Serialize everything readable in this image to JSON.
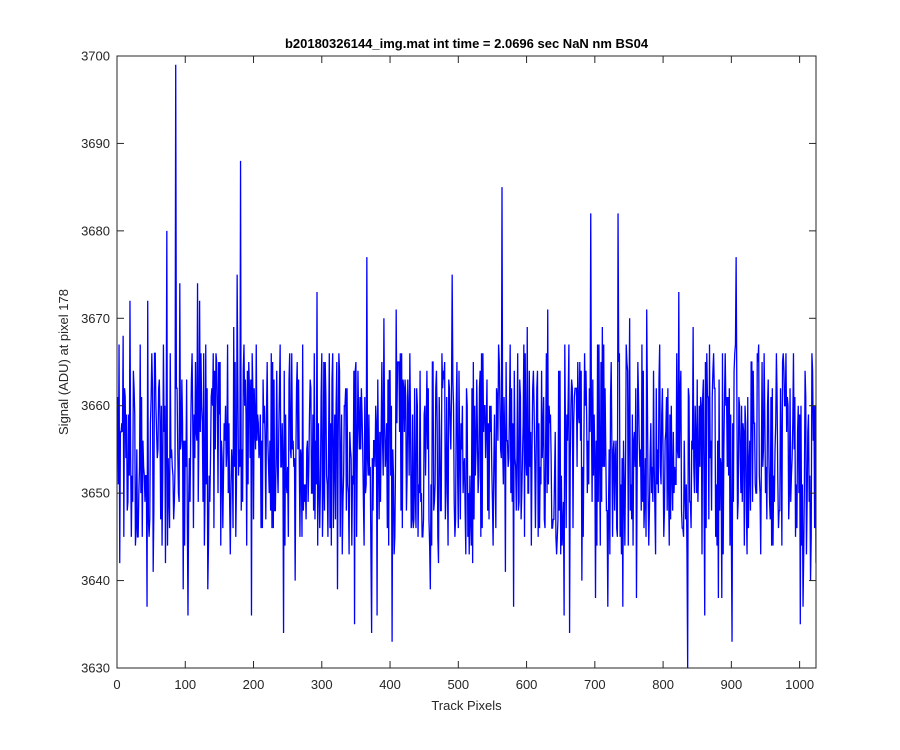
{
  "chart_data": {
    "type": "line",
    "title": "b20180326144_img.mat int time = 2.0696 sec  NaN nm BS04",
    "xlabel": "Track Pixels",
    "ylabel": "Signal (ADU) at pixel 178",
    "xlim": [
      0,
      1024
    ],
    "ylim": [
      3630,
      3700
    ],
    "xticks": [
      0,
      100,
      200,
      300,
      400,
      500,
      600,
      700,
      800,
      900,
      1000
    ],
    "yticks": [
      3630,
      3640,
      3650,
      3660,
      3670,
      3680,
      3690,
      3700
    ],
    "xtick_labels": [
      "0",
      "100",
      "200",
      "300",
      "400",
      "500",
      "600",
      "700",
      "800",
      "900",
      "1000"
    ],
    "ytick_labels": [
      "3630",
      "3640",
      "3650",
      "3660",
      "3670",
      "3680",
      "3690",
      "3700"
    ],
    "grid": false,
    "series": [
      {
        "color": "#0000ff",
        "peaks": [
          [
            0,
            3661
          ],
          [
            3,
            3642
          ],
          [
            8,
            3668
          ],
          [
            14,
            3648
          ],
          [
            18,
            3672
          ],
          [
            43,
            3637
          ],
          [
            44,
            3672
          ],
          [
            52,
            3641
          ],
          [
            61,
            3663
          ],
          [
            70,
            3642
          ],
          [
            72,
            3680
          ],
          [
            82,
            3647
          ],
          [
            85,
            3699
          ],
          [
            89,
            3650
          ],
          [
            91,
            3674
          ],
          [
            96,
            3639
          ],
          [
            103,
            3636
          ],
          [
            112,
            3659
          ],
          [
            117,
            3674
          ],
          [
            120,
            3672
          ],
          [
            129,
            3667
          ],
          [
            132,
            3639
          ],
          [
            165,
            3643
          ],
          [
            170,
            3669
          ],
          [
            175,
            3675
          ],
          [
            180,
            3688
          ],
          [
            186,
            3660
          ],
          [
            196,
            3636
          ],
          [
            243,
            3634
          ],
          [
            255,
            3666
          ],
          [
            260,
            3640
          ],
          [
            292,
            3673
          ],
          [
            298,
            3661
          ],
          [
            300,
            3645
          ],
          [
            322,
            3639
          ],
          [
            347,
            3635
          ],
          [
            365,
            3677
          ],
          [
            372,
            3634
          ],
          [
            380,
            3636
          ],
          [
            390,
            3670
          ],
          [
            402,
            3633
          ],
          [
            408,
            3671
          ],
          [
            433,
            3646
          ],
          [
            458,
            3639
          ],
          [
            470,
            3642
          ],
          [
            490,
            3675
          ],
          [
            520,
            3642
          ],
          [
            560,
            3660
          ],
          [
            563,
            3685
          ],
          [
            568,
            3641
          ],
          [
            580,
            3637
          ],
          [
            600,
            3669
          ],
          [
            630,
            3671
          ],
          [
            654,
            3636
          ],
          [
            662,
            3634
          ],
          [
            680,
            3640
          ],
          [
            693,
            3682
          ],
          [
            700,
            3638
          ],
          [
            710,
            3669
          ],
          [
            718,
            3637
          ],
          [
            720,
            3655
          ],
          [
            733,
            3682
          ],
          [
            740,
            3637
          ],
          [
            750,
            3670
          ],
          [
            760,
            3638
          ],
          [
            775,
            3671
          ],
          [
            800,
            3645
          ],
          [
            810,
            3647
          ],
          [
            822,
            3673
          ],
          [
            828,
            3646
          ],
          [
            835,
            3630
          ],
          [
            843,
            3669
          ],
          [
            860,
            3636
          ],
          [
            873,
            3666
          ],
          [
            878,
            3644
          ],
          [
            880,
            3638
          ],
          [
            885,
            3638
          ],
          [
            891,
            3660
          ],
          [
            900,
            3633
          ],
          [
            906,
            3677
          ],
          [
            915,
            3649
          ],
          [
            924,
            3646
          ],
          [
            953,
            3663
          ],
          [
            962,
            3649
          ],
          [
            970,
            3648
          ],
          [
            975,
            3666
          ],
          [
            1000,
            3635
          ],
          [
            1004,
            3637
          ],
          [
            1010,
            3649
          ],
          [
            1015,
            3640
          ],
          [
            1018,
            3664
          ],
          [
            1020,
            3660
          ],
          [
            1024,
            3642
          ]
        ],
        "typical_range": [
          3643,
          3667
        ],
        "point_count": 1024
      }
    ]
  }
}
